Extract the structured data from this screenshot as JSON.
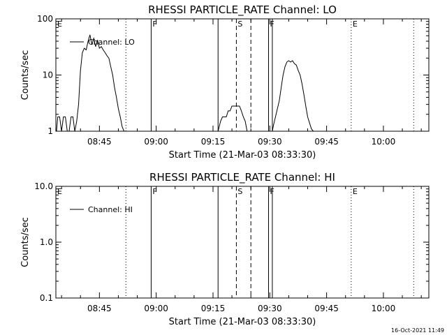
{
  "footer": {
    "timestamp": "16-Oct-2021 11:49"
  },
  "chart_data": [
    {
      "type": "line",
      "title": "RHESSI PARTICLE_RATE Channel: LO",
      "xlabel": "Start Time (21-Mar-03 08:33:30)",
      "ylabel": "Counts/sec",
      "yscale": "log",
      "ylim": [
        1,
        100
      ],
      "xlim": [
        "08:33:30",
        "10:12:00"
      ],
      "x_ticks": [
        "08:45",
        "09:00",
        "09:15",
        "09:30",
        "09:45",
        "10:00"
      ],
      "y_ticks": [
        "1",
        "10",
        "100"
      ],
      "grid": false,
      "legend_position": "top-left",
      "markers": [
        {
          "time": "08:33:30",
          "label": "E",
          "style": "solid"
        },
        {
          "time": "08:52:00",
          "label": "",
          "style": "dotted"
        },
        {
          "time": "08:58:40",
          "label": "F",
          "style": "solid"
        },
        {
          "time": "09:16:20",
          "label": "",
          "style": "solid"
        },
        {
          "time": "09:21:10",
          "label": "S",
          "style": "dashed"
        },
        {
          "time": "09:25:00",
          "label": "",
          "style": "dashed"
        },
        {
          "time": "09:29:40",
          "label": "F",
          "style": "solid"
        },
        {
          "time": "09:30:40",
          "label": "",
          "style": "solid"
        },
        {
          "time": "09:51:30",
          "label": "E",
          "style": "dotted"
        },
        {
          "time": "10:08:00",
          "label": "",
          "style": "dotted"
        }
      ],
      "series": [
        {
          "name": "Channel: LO",
          "x": [
            "08:33:40",
            "08:34:00",
            "08:34:30",
            "08:35:00",
            "08:35:30",
            "08:36:00",
            "08:36:30",
            "08:37:00",
            "08:37:30",
            "08:38:00",
            "08:38:30",
            "08:39:00",
            "08:39:30",
            "08:40:00",
            "08:40:30",
            "08:41:00",
            "08:41:30",
            "08:42:00",
            "08:42:30",
            "08:43:00",
            "08:43:30",
            "08:44:00",
            "08:44:30",
            "08:45:00",
            "08:45:30",
            "08:46:00",
            "08:46:30",
            "08:47:00",
            "08:47:30",
            "08:48:00",
            "08:48:30",
            "08:49:00",
            "08:49:30",
            "08:50:00",
            "08:50:30",
            "08:51:00",
            "08:51:30",
            "08:52:00"
          ],
          "y": [
            1.0,
            1.8,
            1.8,
            1.0,
            1.8,
            1.8,
            1.0,
            1.0,
            1.8,
            1.8,
            1.0,
            1.5,
            3.0,
            12,
            25,
            30,
            28,
            40,
            52,
            35,
            45,
            32,
            42,
            30,
            32,
            28,
            25,
            22,
            20,
            14,
            10,
            6,
            4,
            2.5,
            1.8,
            1.2,
            1.0,
            1.0
          ]
        },
        {
          "name": "Channel: LO",
          "x": [
            "09:16:20",
            "09:17:00",
            "09:17:30",
            "09:18:00",
            "09:18:30",
            "09:19:00",
            "09:19:30",
            "09:20:00",
            "09:20:30",
            "09:21:00",
            "09:21:30",
            "09:22:00",
            "09:22:30",
            "09:23:00",
            "09:23:30",
            "09:24:00"
          ],
          "y": [
            1.0,
            1.5,
            1.8,
            1.8,
            1.8,
            2.3,
            2.3,
            2.8,
            2.8,
            2.8,
            2.8,
            2.8,
            2.3,
            1.8,
            1.5,
            1.0
          ]
        },
        {
          "name": "Channel: LO",
          "x": [
            "09:30:40",
            "09:31:00",
            "09:31:30",
            "09:32:00",
            "09:32:30",
            "09:33:00",
            "09:33:30",
            "09:34:00",
            "09:34:30",
            "09:35:00",
            "09:35:30",
            "09:36:00",
            "09:36:30",
            "09:37:00",
            "09:37:30",
            "09:38:00",
            "09:38:30",
            "09:39:00",
            "09:39:30",
            "09:40:00",
            "09:40:30",
            "09:41:00",
            "09:41:30"
          ],
          "y": [
            1.0,
            1.3,
            1.8,
            2.5,
            3.5,
            6,
            10,
            14,
            17,
            18,
            17,
            18,
            16,
            15,
            12,
            10,
            7,
            4.5,
            2.8,
            1.8,
            1.4,
            1.1,
            1.0
          ]
        }
      ]
    },
    {
      "type": "line",
      "title": "RHESSI PARTICLE_RATE Channel: HI",
      "xlabel": "Start Time (21-Mar-03 08:33:30)",
      "ylabel": "Counts/sec",
      "yscale": "log",
      "ylim": [
        0.1,
        10
      ],
      "xlim": [
        "08:33:30",
        "10:12:00"
      ],
      "x_ticks": [
        "08:45",
        "09:00",
        "09:15",
        "09:30",
        "09:45",
        "10:00"
      ],
      "y_ticks": [
        "0.1",
        "1.0",
        "10.0"
      ],
      "grid": false,
      "legend_position": "top-left",
      "markers": [
        {
          "time": "08:33:30",
          "label": "E",
          "style": "solid"
        },
        {
          "time": "08:52:00",
          "label": "",
          "style": "dotted"
        },
        {
          "time": "08:58:40",
          "label": "F",
          "style": "solid"
        },
        {
          "time": "09:16:20",
          "label": "",
          "style": "solid"
        },
        {
          "time": "09:21:10",
          "label": "S",
          "style": "dashed"
        },
        {
          "time": "09:25:00",
          "label": "",
          "style": "dashed"
        },
        {
          "time": "09:29:40",
          "label": "F",
          "style": "solid"
        },
        {
          "time": "09:30:40",
          "label": "",
          "style": "solid"
        },
        {
          "time": "09:51:30",
          "label": "E",
          "style": "dotted"
        },
        {
          "time": "10:08:00",
          "label": "",
          "style": "dotted"
        }
      ],
      "series": [
        {
          "name": "Channel: HI",
          "x": [],
          "y": []
        }
      ]
    }
  ]
}
